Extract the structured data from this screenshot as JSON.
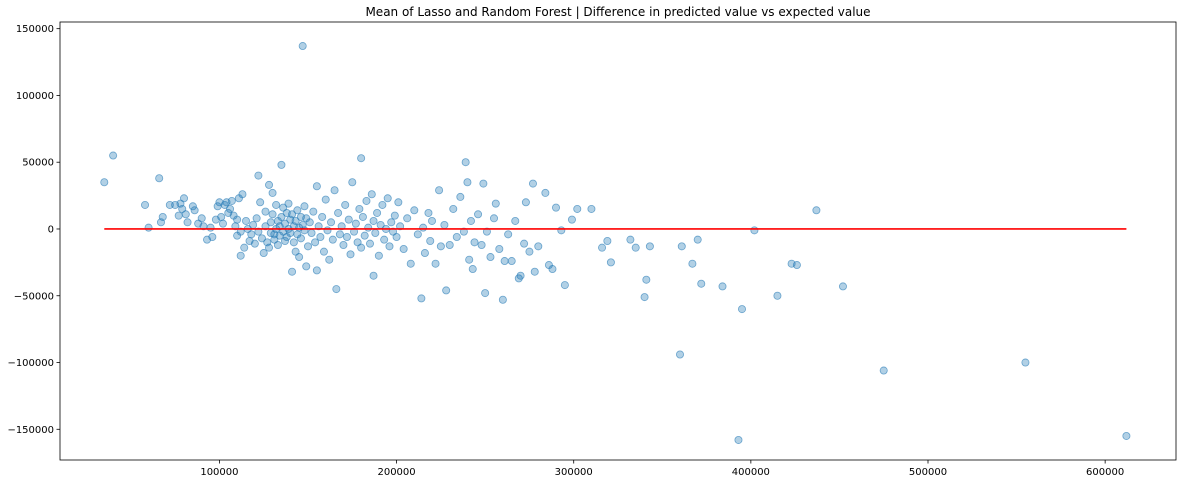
{
  "chart_data": {
    "type": "scatter",
    "title": "Mean of Lasso and Random Forest | Difference in predicted value vs expected value",
    "xlabel": "",
    "ylabel": "",
    "xlim": [
      10000,
      640000
    ],
    "ylim": [
      -173000,
      155000
    ],
    "xticks": [
      100000,
      200000,
      300000,
      400000,
      500000,
      600000
    ],
    "yticks": [
      -150000,
      -100000,
      -50000,
      0,
      50000,
      100000,
      150000
    ],
    "grid": false,
    "colors": {
      "points": "#1f77b4",
      "reference_line": "#ff0000",
      "axes": "#000000",
      "background": "#ffffff"
    },
    "point_alpha": 0.35,
    "reference_line": {
      "y": 0,
      "x": [
        35000,
        612000
      ]
    },
    "points": [
      {
        "x": 35000,
        "y": 35000
      },
      {
        "x": 40000,
        "y": 55000
      },
      {
        "x": 58000,
        "y": 18000
      },
      {
        "x": 60000,
        "y": 1000
      },
      {
        "x": 66000,
        "y": 38000
      },
      {
        "x": 67000,
        "y": 5000
      },
      {
        "x": 68000,
        "y": 9000
      },
      {
        "x": 72000,
        "y": 18000
      },
      {
        "x": 75000,
        "y": 18000
      },
      {
        "x": 77000,
        "y": 10000
      },
      {
        "x": 78000,
        "y": 19000
      },
      {
        "x": 79000,
        "y": 15000
      },
      {
        "x": 80000,
        "y": 23000
      },
      {
        "x": 81000,
        "y": 11000
      },
      {
        "x": 82000,
        "y": 5000
      },
      {
        "x": 85000,
        "y": 17000
      },
      {
        "x": 86000,
        "y": 14000
      },
      {
        "x": 88000,
        "y": 4000
      },
      {
        "x": 90000,
        "y": 8000
      },
      {
        "x": 91000,
        "y": 2000
      },
      {
        "x": 93000,
        "y": -8000
      },
      {
        "x": 95000,
        "y": 1000
      },
      {
        "x": 96000,
        "y": -6000
      },
      {
        "x": 98000,
        "y": 7000
      },
      {
        "x": 99000,
        "y": 17000
      },
      {
        "x": 100000,
        "y": 20000
      },
      {
        "x": 101000,
        "y": 9000
      },
      {
        "x": 102000,
        "y": 4000
      },
      {
        "x": 103000,
        "y": 18000
      },
      {
        "x": 104000,
        "y": 20000
      },
      {
        "x": 105000,
        "y": 12000
      },
      {
        "x": 106000,
        "y": 15000
      },
      {
        "x": 107000,
        "y": 21000
      },
      {
        "x": 108000,
        "y": 10000
      },
      {
        "x": 109000,
        "y": 2000
      },
      {
        "x": 110000,
        "y": -5000
      },
      {
        "x": 110000,
        "y": 7000
      },
      {
        "x": 111000,
        "y": 23000
      },
      {
        "x": 112000,
        "y": -2000
      },
      {
        "x": 112000,
        "y": -20000
      },
      {
        "x": 113000,
        "y": 26000
      },
      {
        "x": 114000,
        "y": -14000
      },
      {
        "x": 115000,
        "y": 6000
      },
      {
        "x": 116000,
        "y": 0
      },
      {
        "x": 117000,
        "y": -9000
      },
      {
        "x": 118000,
        "y": -4000
      },
      {
        "x": 119000,
        "y": 3000
      },
      {
        "x": 120000,
        "y": -11000
      },
      {
        "x": 121000,
        "y": 8000
      },
      {
        "x": 122000,
        "y": 40000
      },
      {
        "x": 122000,
        "y": -2000
      },
      {
        "x": 123000,
        "y": 20000
      },
      {
        "x": 124000,
        "y": -7000
      },
      {
        "x": 125000,
        "y": -18000
      },
      {
        "x": 126000,
        "y": 13000
      },
      {
        "x": 126000,
        "y": 2000
      },
      {
        "x": 127000,
        "y": -10000
      },
      {
        "x": 128000,
        "y": 33000
      },
      {
        "x": 128000,
        "y": -14000
      },
      {
        "x": 129000,
        "y": 5000
      },
      {
        "x": 129000,
        "y": -3000
      },
      {
        "x": 130000,
        "y": 27000
      },
      {
        "x": 130000,
        "y": 11000
      },
      {
        "x": 131000,
        "y": -4000
      },
      {
        "x": 131000,
        "y": -8000
      },
      {
        "x": 132000,
        "y": 18000
      },
      {
        "x": 132000,
        "y": 0
      },
      {
        "x": 133000,
        "y": 6000
      },
      {
        "x": 133000,
        "y": -12000
      },
      {
        "x": 134000,
        "y": 2000
      },
      {
        "x": 134000,
        "y": -5000
      },
      {
        "x": 135000,
        "y": 48000
      },
      {
        "x": 135000,
        "y": 9000
      },
      {
        "x": 136000,
        "y": -2000
      },
      {
        "x": 136000,
        "y": 16000
      },
      {
        "x": 137000,
        "y": 4000
      },
      {
        "x": 137000,
        "y": -9000
      },
      {
        "x": 138000,
        "y": 12000
      },
      {
        "x": 138000,
        "y": -6000
      },
      {
        "x": 139000,
        "y": 19000
      },
      {
        "x": 139000,
        "y": 0
      },
      {
        "x": 140000,
        "y": 7000
      },
      {
        "x": 140000,
        "y": -3000
      },
      {
        "x": 141000,
        "y": -32000
      },
      {
        "x": 141000,
        "y": 11000
      },
      {
        "x": 142000,
        "y": 2000
      },
      {
        "x": 142000,
        "y": -10000
      },
      {
        "x": 143000,
        "y": 6000
      },
      {
        "x": 143000,
        "y": -17000
      },
      {
        "x": 144000,
        "y": -4000
      },
      {
        "x": 144000,
        "y": 14000
      },
      {
        "x": 145000,
        "y": 1000
      },
      {
        "x": 145000,
        "y": -21000
      },
      {
        "x": 146000,
        "y": 9000
      },
      {
        "x": 146000,
        "y": -7000
      },
      {
        "x": 147000,
        "y": 137000
      },
      {
        "x": 147000,
        "y": 3000
      },
      {
        "x": 148000,
        "y": -1000
      },
      {
        "x": 148000,
        "y": 17000
      },
      {
        "x": 149000,
        "y": -28000
      },
      {
        "x": 149000,
        "y": 8000
      },
      {
        "x": 150000,
        "y": -13000
      },
      {
        "x": 151000,
        "y": 5000
      },
      {
        "x": 152000,
        "y": -3000
      },
      {
        "x": 153000,
        "y": 13000
      },
      {
        "x": 154000,
        "y": -10000
      },
      {
        "x": 155000,
        "y": -31000
      },
      {
        "x": 155000,
        "y": 32000
      },
      {
        "x": 156000,
        "y": 2000
      },
      {
        "x": 157000,
        "y": -6000
      },
      {
        "x": 158000,
        "y": 9000
      },
      {
        "x": 159000,
        "y": -17000
      },
      {
        "x": 160000,
        "y": 22000
      },
      {
        "x": 161000,
        "y": -1000
      },
      {
        "x": 162000,
        "y": -23000
      },
      {
        "x": 163000,
        "y": 5000
      },
      {
        "x": 164000,
        "y": -8000
      },
      {
        "x": 165000,
        "y": 29000
      },
      {
        "x": 166000,
        "y": -45000
      },
      {
        "x": 167000,
        "y": 12000
      },
      {
        "x": 168000,
        "y": -4000
      },
      {
        "x": 169000,
        "y": 2000
      },
      {
        "x": 170000,
        "y": -12000
      },
      {
        "x": 171000,
        "y": 18000
      },
      {
        "x": 172000,
        "y": -6000
      },
      {
        "x": 173000,
        "y": 7000
      },
      {
        "x": 174000,
        "y": -19000
      },
      {
        "x": 175000,
        "y": 35000
      },
      {
        "x": 176000,
        "y": -2000
      },
      {
        "x": 177000,
        "y": 4000
      },
      {
        "x": 178000,
        "y": -10000
      },
      {
        "x": 179000,
        "y": 15000
      },
      {
        "x": 180000,
        "y": 53000
      },
      {
        "x": 180000,
        "y": -14000
      },
      {
        "x": 181000,
        "y": 9000
      },
      {
        "x": 182000,
        "y": -5000
      },
      {
        "x": 183000,
        "y": 21000
      },
      {
        "x": 184000,
        "y": 1000
      },
      {
        "x": 185000,
        "y": -11000
      },
      {
        "x": 186000,
        "y": 26000
      },
      {
        "x": 187000,
        "y": -35000
      },
      {
        "x": 187000,
        "y": 6000
      },
      {
        "x": 188000,
        "y": -3000
      },
      {
        "x": 189000,
        "y": 12000
      },
      {
        "x": 190000,
        "y": -20000
      },
      {
        "x": 191000,
        "y": 3000
      },
      {
        "x": 192000,
        "y": 18000
      },
      {
        "x": 193000,
        "y": -8000
      },
      {
        "x": 194000,
        "y": 0
      },
      {
        "x": 195000,
        "y": 23000
      },
      {
        "x": 196000,
        "y": -13000
      },
      {
        "x": 197000,
        "y": 5000
      },
      {
        "x": 198000,
        "y": -2000
      },
      {
        "x": 199000,
        "y": 10000
      },
      {
        "x": 200000,
        "y": -6000
      },
      {
        "x": 201000,
        "y": 20000
      },
      {
        "x": 202000,
        "y": 2000
      },
      {
        "x": 204000,
        "y": -15000
      },
      {
        "x": 206000,
        "y": 8000
      },
      {
        "x": 208000,
        "y": -26000
      },
      {
        "x": 210000,
        "y": 14000
      },
      {
        "x": 212000,
        "y": -4000
      },
      {
        "x": 214000,
        "y": -52000
      },
      {
        "x": 215000,
        "y": 1000
      },
      {
        "x": 216000,
        "y": -18000
      },
      {
        "x": 218000,
        "y": 12000
      },
      {
        "x": 219000,
        "y": -9000
      },
      {
        "x": 220000,
        "y": 6000
      },
      {
        "x": 222000,
        "y": -26000
      },
      {
        "x": 224000,
        "y": 29000
      },
      {
        "x": 225000,
        "y": -13000
      },
      {
        "x": 227000,
        "y": 3000
      },
      {
        "x": 228000,
        "y": -46000
      },
      {
        "x": 230000,
        "y": -12000
      },
      {
        "x": 232000,
        "y": 15000
      },
      {
        "x": 234000,
        "y": -6000
      },
      {
        "x": 236000,
        "y": 24000
      },
      {
        "x": 238000,
        "y": -2000
      },
      {
        "x": 239000,
        "y": 50000
      },
      {
        "x": 240000,
        "y": 35000
      },
      {
        "x": 241000,
        "y": -23000
      },
      {
        "x": 242000,
        "y": 6000
      },
      {
        "x": 243000,
        "y": -30000
      },
      {
        "x": 244000,
        "y": -10000
      },
      {
        "x": 246000,
        "y": 11000
      },
      {
        "x": 248000,
        "y": -12000
      },
      {
        "x": 249000,
        "y": 34000
      },
      {
        "x": 250000,
        "y": -48000
      },
      {
        "x": 251000,
        "y": -2000
      },
      {
        "x": 253000,
        "y": -21000
      },
      {
        "x": 255000,
        "y": 8000
      },
      {
        "x": 256000,
        "y": 19000
      },
      {
        "x": 258000,
        "y": -15000
      },
      {
        "x": 260000,
        "y": -53000
      },
      {
        "x": 261000,
        "y": -24000
      },
      {
        "x": 263000,
        "y": -4000
      },
      {
        "x": 265000,
        "y": -24000
      },
      {
        "x": 267000,
        "y": 6000
      },
      {
        "x": 269000,
        "y": -37000
      },
      {
        "x": 270000,
        "y": -35000
      },
      {
        "x": 272000,
        "y": -11000
      },
      {
        "x": 273000,
        "y": 20000
      },
      {
        "x": 275000,
        "y": -17000
      },
      {
        "x": 277000,
        "y": 34000
      },
      {
        "x": 278000,
        "y": -32000
      },
      {
        "x": 280000,
        "y": -13000
      },
      {
        "x": 284000,
        "y": 27000
      },
      {
        "x": 286000,
        "y": -27000
      },
      {
        "x": 288000,
        "y": -30000
      },
      {
        "x": 290000,
        "y": 16000
      },
      {
        "x": 293000,
        "y": -1000
      },
      {
        "x": 295000,
        "y": -42000
      },
      {
        "x": 299000,
        "y": 7000
      },
      {
        "x": 302000,
        "y": 15000
      },
      {
        "x": 310000,
        "y": 15000
      },
      {
        "x": 316000,
        "y": -14000
      },
      {
        "x": 319000,
        "y": -9000
      },
      {
        "x": 321000,
        "y": -25000
      },
      {
        "x": 332000,
        "y": -8000
      },
      {
        "x": 335000,
        "y": -14000
      },
      {
        "x": 340000,
        "y": -51000
      },
      {
        "x": 341000,
        "y": -38000
      },
      {
        "x": 343000,
        "y": -13000
      },
      {
        "x": 360000,
        "y": -94000
      },
      {
        "x": 361000,
        "y": -13000
      },
      {
        "x": 367000,
        "y": -26000
      },
      {
        "x": 370000,
        "y": -8000
      },
      {
        "x": 372000,
        "y": -41000
      },
      {
        "x": 384000,
        "y": -43000
      },
      {
        "x": 393000,
        "y": -158000
      },
      {
        "x": 395000,
        "y": -60000
      },
      {
        "x": 402000,
        "y": -1000
      },
      {
        "x": 415000,
        "y": -50000
      },
      {
        "x": 423000,
        "y": -26000
      },
      {
        "x": 426000,
        "y": -27000
      },
      {
        "x": 437000,
        "y": 14000
      },
      {
        "x": 452000,
        "y": -43000
      },
      {
        "x": 475000,
        "y": -106000
      },
      {
        "x": 555000,
        "y": -100000
      },
      {
        "x": 612000,
        "y": -155000
      }
    ]
  }
}
